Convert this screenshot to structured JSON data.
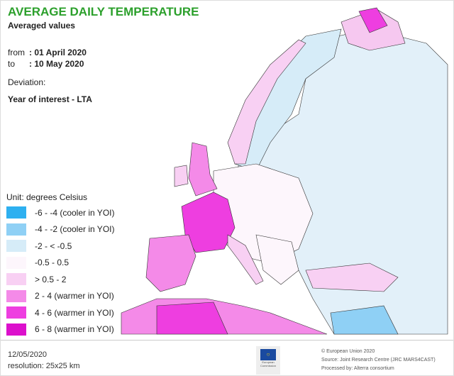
{
  "header": {
    "title": "AVERAGE DAILY TEMPERATURE",
    "subtitle": "Averaged values",
    "from_label": "from",
    "from_value": ": 01 April 2020",
    "to_label": "to",
    "to_value": ": 10 May 2020",
    "deviation_label": "Deviation:",
    "deviation_value": "Year of interest - LTA"
  },
  "legend": {
    "unit": "Unit: degrees Celsius",
    "items": [
      {
        "label": "-6 - -4 (cooler in YOI)",
        "color": "#2eb0f0"
      },
      {
        "label": "-4 - -2 (cooler in YOI)",
        "color": "#8fd0f5"
      },
      {
        "label": "-2 - < -0.5",
        "color": "#d6ecf8"
      },
      {
        "label": "-0.5 - 0.5",
        "color": "#fdf6fc"
      },
      {
        "label": "> 0.5 - 2",
        "color": "#f8d0f3"
      },
      {
        "label": "2 - 4 (warmer in YOI)",
        "color": "#f48ae8"
      },
      {
        "label": "4 - 6 (warmer in YOI)",
        "color": "#ee3ee0"
      },
      {
        "label": "6 - 8 (warmer in YOI)",
        "color": "#dc10cc"
      }
    ]
  },
  "footer": {
    "date": "12/05/2020",
    "resolution": "resolution: 25x25 km",
    "copyright": "© European Union 2020",
    "source": "Source: Joint Research Centre (JRC MARS4CAST)",
    "processed": "Processed by: Alterra consortium",
    "logo_text": "European Commission"
  }
}
